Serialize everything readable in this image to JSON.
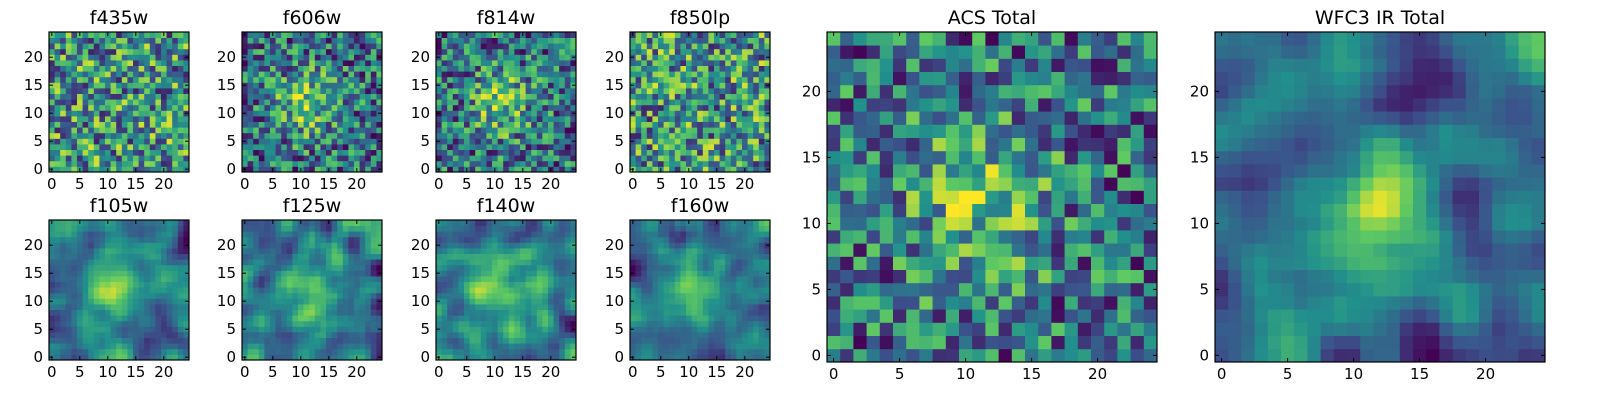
{
  "chart_data": {
    "type": "heatmap",
    "colormap": [
      "#440154",
      "#3b528b",
      "#21918c",
      "#5ec962",
      "#fde725"
    ],
    "panels": [
      {
        "id": "f435w",
        "title": "f435w",
        "size": 25,
        "xticks": [
          0,
          5,
          10,
          15,
          20
        ],
        "yticks": [
          0,
          5,
          10,
          15,
          20
        ],
        "pattern": "noise",
        "seed": 11
      },
      {
        "id": "f606w",
        "title": "f606w",
        "size": 25,
        "xticks": [
          0,
          5,
          10,
          15,
          20
        ],
        "yticks": [
          0,
          5,
          10,
          15,
          20
        ],
        "pattern": "noise_blob",
        "seed": 23
      },
      {
        "id": "f814w",
        "title": "f814w",
        "size": 25,
        "xticks": [
          0,
          5,
          10,
          15,
          20
        ],
        "yticks": [
          0,
          5,
          10,
          15,
          20
        ],
        "pattern": "noise_blob",
        "seed": 37
      },
      {
        "id": "f850lp",
        "title": "f850lp",
        "size": 25,
        "xticks": [
          0,
          5,
          10,
          15,
          20
        ],
        "yticks": [
          0,
          5,
          10,
          15,
          20
        ],
        "pattern": "noise",
        "seed": 41
      },
      {
        "id": "f105w",
        "title": "f105w",
        "size": 25,
        "xticks": [
          0,
          5,
          10,
          15,
          20
        ],
        "yticks": [
          0,
          5,
          10,
          15,
          20
        ],
        "pattern": "smooth",
        "seed": 53
      },
      {
        "id": "f125w",
        "title": "f125w",
        "size": 25,
        "xticks": [
          0,
          5,
          10,
          15,
          20
        ],
        "yticks": [
          0,
          5,
          10,
          15,
          20
        ],
        "pattern": "smooth",
        "seed": 61
      },
      {
        "id": "f140w",
        "title": "f140w",
        "size": 25,
        "xticks": [
          0,
          5,
          10,
          15,
          20
        ],
        "yticks": [
          0,
          5,
          10,
          15,
          20
        ],
        "pattern": "smooth",
        "seed": 73
      },
      {
        "id": "f160w",
        "title": "f160w",
        "size": 25,
        "xticks": [
          0,
          5,
          10,
          15,
          20
        ],
        "yticks": [
          0,
          5,
          10,
          15,
          20
        ],
        "pattern": "smooth",
        "seed": 89
      },
      {
        "id": "acs-total",
        "title": "ACS Total",
        "size": 25,
        "xticks": [
          0,
          5,
          10,
          15,
          20
        ],
        "yticks": [
          0,
          5,
          10,
          15,
          20
        ],
        "pattern": "noise_blob",
        "seed": 97
      },
      {
        "id": "wfc3-ir-total",
        "title": "WFC3 IR Total",
        "size": 25,
        "xticks": [
          0,
          5,
          10,
          15,
          20
        ],
        "yticks": [
          0,
          5,
          10,
          15,
          20
        ],
        "pattern": "smooth_blob",
        "seed": 101
      }
    ]
  }
}
